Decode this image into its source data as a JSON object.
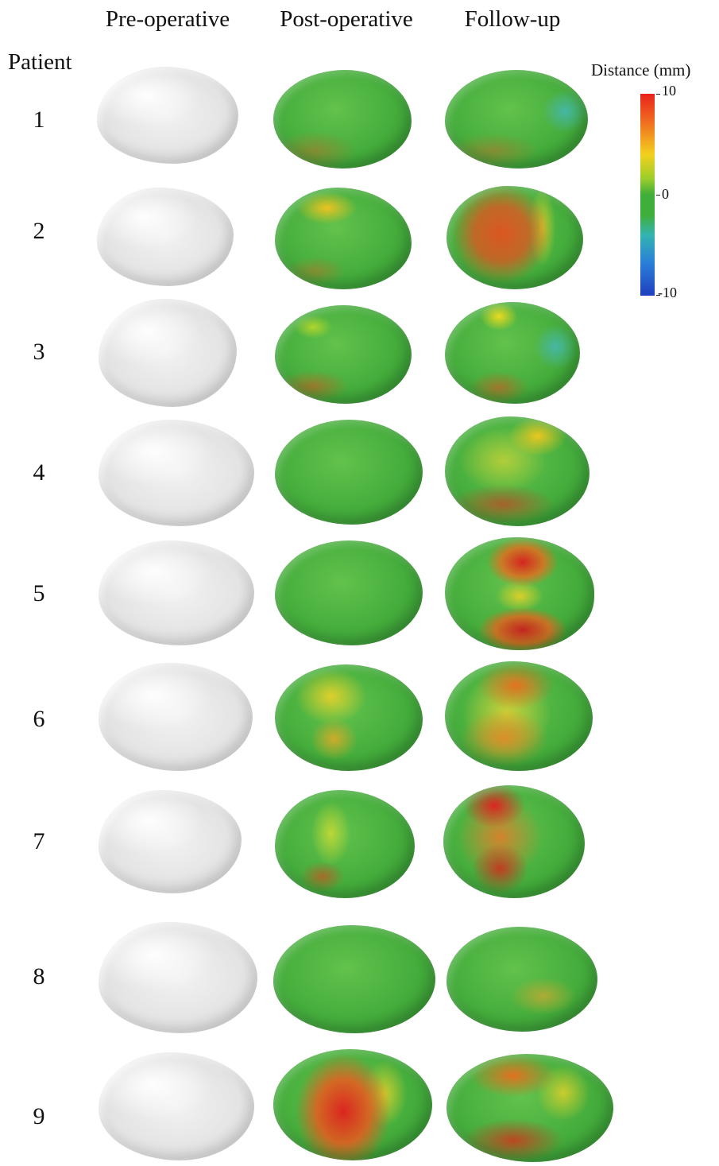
{
  "columns": [
    "Pre-operative",
    "Post-operative",
    "Follow-up"
  ],
  "row_header": "Patient",
  "patients": [
    "1",
    "2",
    "3",
    "4",
    "5",
    "6",
    "7",
    "8",
    "9"
  ],
  "colorbar": {
    "title": "Distance (mm)",
    "max_label": "10",
    "mid_label": "0",
    "min_label": "-10",
    "colors": [
      "#e8231c",
      "#f3d01e",
      "#3fae3a",
      "#2a7ed8",
      "#1f3fbf"
    ]
  }
}
